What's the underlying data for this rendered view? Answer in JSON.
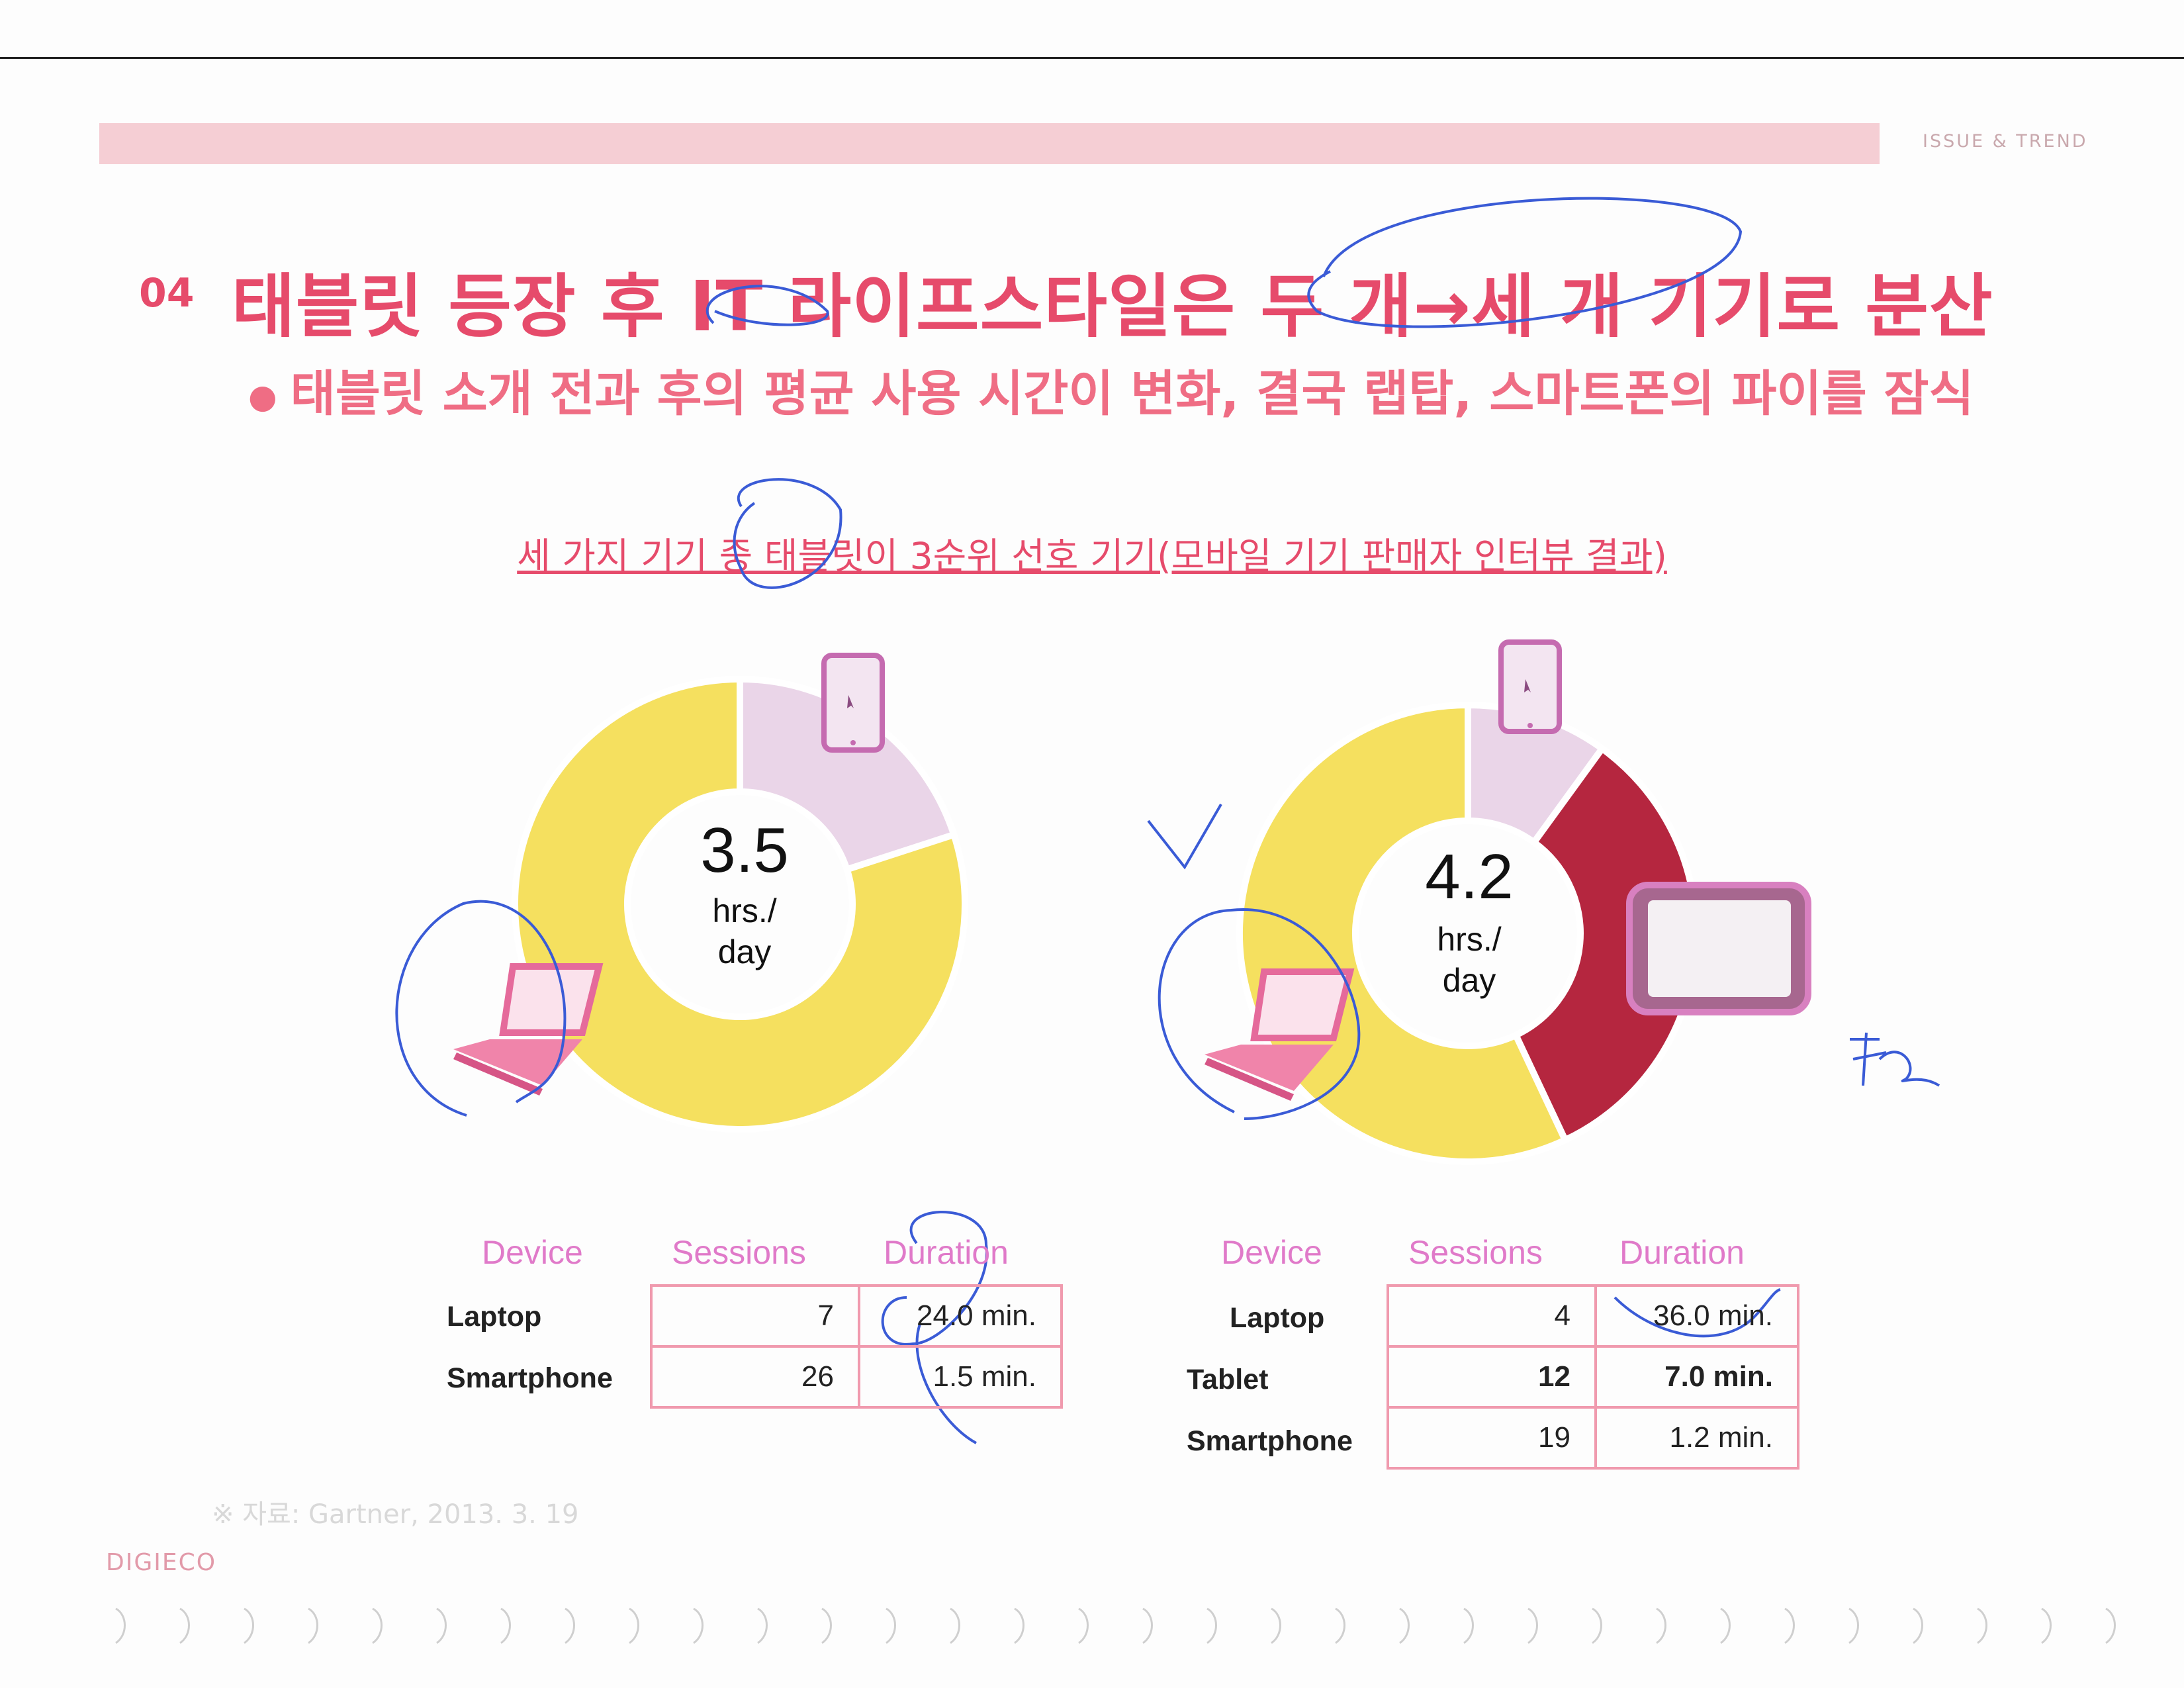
{
  "header": {
    "section_label": "ISSUE & TREND",
    "number": "04",
    "title": "태블릿 등장 후 IT 라이프스타일은 두 개→세 개 기기로 분산",
    "subtitle": "태블릿 소개 전과 후의 평균 사용 시간이 변화, 결국 랩탑, 스마트폰의 파이를 잠식"
  },
  "chart_heading": "세 가지 기기 중 태블릿이 3순위 선호 기기(모바일 기기 판매자 인터뷰 결과)",
  "chart_data": [
    {
      "type": "pie",
      "center_value": "3.5",
      "center_unit": "hrs./\nday",
      "categories": [
        "Laptop",
        "Smartphone"
      ],
      "slice_fractions": [
        0.8,
        0.2
      ],
      "colors": [
        "#f5e05f",
        "#ead5e8"
      ],
      "table": {
        "columns": [
          "Device",
          "Sessions",
          "Duration"
        ],
        "rows": [
          {
            "device": "Laptop",
            "sessions": "7",
            "duration": "24.0 min."
          },
          {
            "device": "Smartphone",
            "sessions": "26",
            "duration": "1.5 min."
          }
        ]
      }
    },
    {
      "type": "pie",
      "center_value": "4.2",
      "center_unit": "hrs./\nday",
      "categories": [
        "Laptop",
        "Tablet",
        "Smartphone"
      ],
      "slice_fractions": [
        0.57,
        0.33,
        0.1
      ],
      "colors": [
        "#f5e05f",
        "#b5263f",
        "#ead5e8"
      ],
      "table": {
        "columns": [
          "Device",
          "Sessions",
          "Duration"
        ],
        "rows": [
          {
            "device": "Laptop",
            "sessions": "4",
            "duration": "36.0 min."
          },
          {
            "device": "Tablet",
            "sessions": "12",
            "duration": "7.0 min."
          },
          {
            "device": "Smartphone",
            "sessions": "19",
            "duration": "1.2 min."
          }
        ]
      }
    }
  ],
  "footer": {
    "source": "※ 자료: Gartner, 2013. 3. 19",
    "brand": "DIGIECO"
  }
}
